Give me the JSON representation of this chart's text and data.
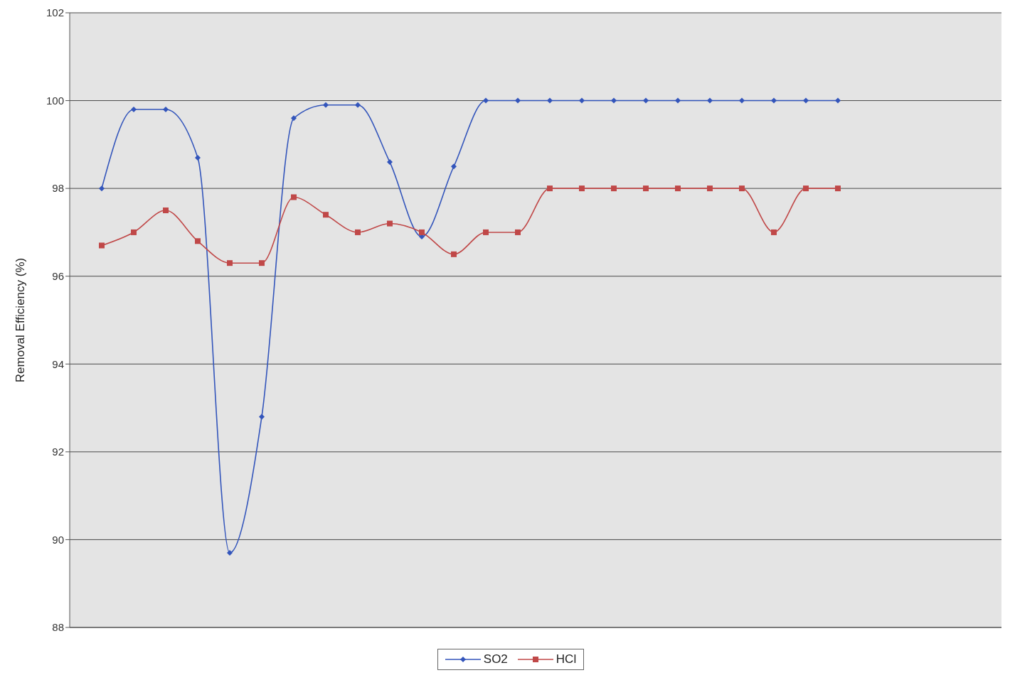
{
  "chart_data": {
    "type": "line",
    "ylabel": "Removal Efficiency (%)",
    "categories": [
      null,
      null,
      null,
      null,
      null,
      null,
      null,
      null,
      null,
      null,
      null,
      null,
      null,
      null,
      null,
      null,
      null,
      null,
      null,
      null,
      null,
      null,
      null,
      null
    ],
    "series": [
      {
        "name": "SO2",
        "color": "#3355bb",
        "marker": "diamond",
        "values": [
          98,
          99.8,
          99.8,
          98.7,
          89.7,
          92.8,
          99.6,
          99.9,
          99.9,
          98.6,
          96.9,
          98.5,
          100,
          100,
          100,
          100,
          100,
          100,
          100,
          100,
          100,
          100,
          100,
          100
        ]
      },
      {
        "name": "HCl",
        "color": "#c04848",
        "marker": "square",
        "values": [
          96.7,
          97,
          97.5,
          96.8,
          96.3,
          96.3,
          97.8,
          97.4,
          97,
          97.2,
          97,
          96.5,
          97,
          97,
          98,
          98,
          98,
          98,
          98,
          98,
          98,
          97,
          98,
          98
        ]
      }
    ],
    "ylim": [
      88,
      102
    ],
    "yticks": [
      88,
      90,
      92,
      94,
      96,
      98,
      100,
      102
    ],
    "grid": "y",
    "legend": "bottom",
    "line_style": "solid"
  }
}
